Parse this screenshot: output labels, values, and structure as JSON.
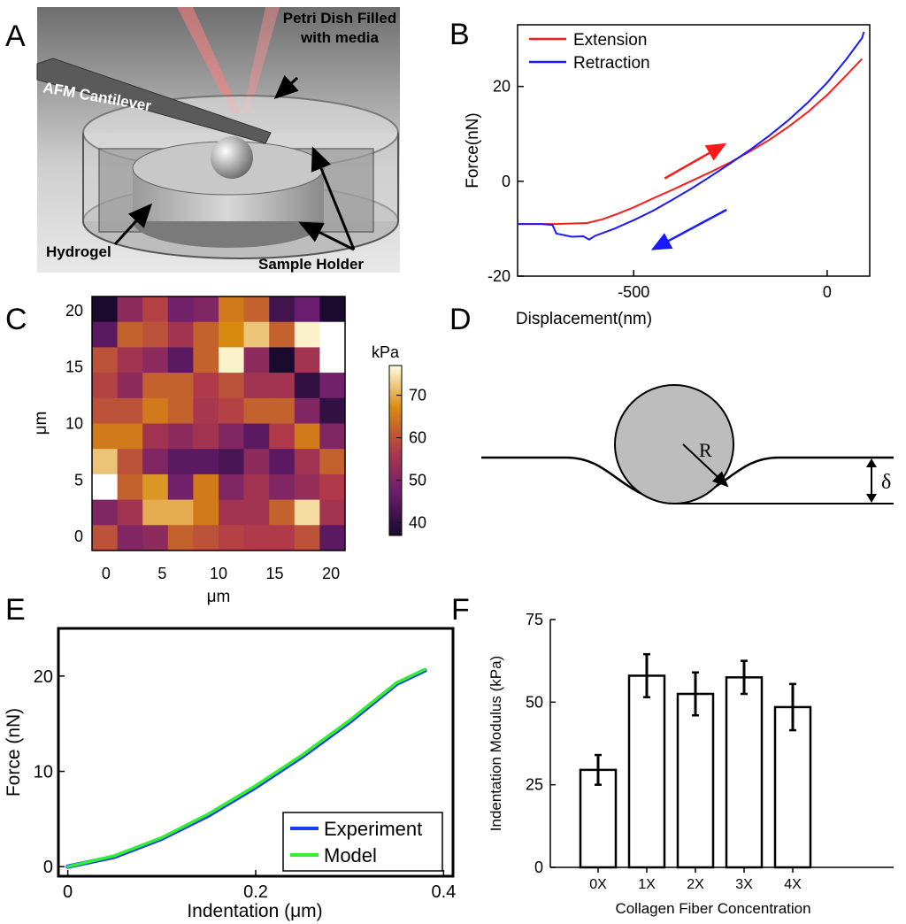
{
  "panel_labels": [
    "A",
    "B",
    "C",
    "D",
    "E",
    "F"
  ],
  "colors": {
    "extension": "#ff1a1a",
    "retraction": "#1a1aff",
    "experiment": "#1a3cff",
    "model": "#33ee33",
    "bar_fill": "#ffffff",
    "laser": "#ff8080"
  },
  "panel_a": {
    "labels": {
      "petri_dish": "Petri Dish Filled with media",
      "cantilever": "AFM Cantilever",
      "hydrogel": "Hydrogel",
      "sample_holder": "Sample Holder"
    }
  },
  "panel_d": {
    "radius_label": "R",
    "depth_label": "δ"
  },
  "chart_data": [
    {
      "panel": "B",
      "type": "line",
      "xlabel": "Displacement(nm)",
      "ylabel": "Force(nN)",
      "xlim": [
        -800,
        110
      ],
      "ylim": [
        -20,
        33
      ],
      "xticks": [
        -500,
        0
      ],
      "yticks": [
        -20,
        0,
        20
      ],
      "legend": [
        "Extension",
        "Retraction"
      ],
      "legend_position": "top-left",
      "series": [
        {
          "name": "Extension",
          "color": "#ff1a1a",
          "x": [
            -800,
            -700,
            -620,
            -580,
            -540,
            -500,
            -450,
            -400,
            -350,
            -300,
            -250,
            -200,
            -150,
            -100,
            -50,
            0,
            50,
            90
          ],
          "y": [
            -9,
            -9,
            -8.8,
            -8,
            -6.8,
            -5.5,
            -3.6,
            -1.8,
            0.1,
            2,
            4,
            6.3,
            8.7,
            11.5,
            14.6,
            18.2,
            22.4,
            25.8
          ]
        },
        {
          "name": "Retraction",
          "color": "#1a1aff",
          "x": [
            95,
            90,
            50,
            0,
            -50,
            -100,
            -150,
            -200,
            -250,
            -300,
            -350,
            -400,
            -450,
            -500,
            -550,
            -600,
            -615,
            -630,
            -660,
            -700,
            -710,
            -740,
            -800
          ],
          "y": [
            31.5,
            30.2,
            25.8,
            20.8,
            16.6,
            12.9,
            9.6,
            6.6,
            3.8,
            1.1,
            -1.5,
            -3.9,
            -6.2,
            -8.2,
            -10,
            -11.5,
            -12.3,
            -11.6,
            -11.7,
            -11,
            -9.2,
            -9,
            -9
          ]
        }
      ],
      "annotations": [
        {
          "type": "arrow",
          "color": "#ff1a1a",
          "from": [
            -420,
            0.6
          ],
          "to": [
            -265,
            7.8
          ]
        },
        {
          "type": "arrow",
          "color": "#1a1aff",
          "from": [
            -260,
            -6
          ],
          "to": [
            -450,
            -14.3
          ]
        }
      ]
    },
    {
      "panel": "C",
      "type": "heatmap",
      "xlabel": "μm",
      "ylabel": "μm",
      "xticks": [
        0,
        5,
        10,
        15,
        20
      ],
      "yticks": [
        0,
        5,
        10,
        15,
        20
      ],
      "xlim": [
        -1.25,
        21.25
      ],
      "ylim": [
        -1.25,
        21.25
      ],
      "colorbar_label": "kPa",
      "colorbar_ticks": [
        40,
        50,
        60,
        70
      ],
      "clim": [
        37,
        77
      ],
      "colormap": "hot-purple",
      "rows_top_to_bottom": [
        [
          37,
          52,
          58,
          48,
          50,
          65,
          62,
          42,
          47,
          37
        ],
        [
          45,
          62,
          60,
          55,
          62,
          67,
          72,
          62,
          76,
          77
        ],
        [
          60,
          55,
          52,
          45,
          62,
          76,
          52,
          37,
          55,
          77
        ],
        [
          58,
          52,
          62,
          62,
          57,
          60,
          55,
          55,
          40,
          48
        ],
        [
          60,
          60,
          65,
          62,
          56,
          58,
          62,
          62,
          50,
          40
        ],
        [
          65,
          65,
          55,
          52,
          55,
          50,
          45,
          57,
          65,
          50
        ],
        [
          72,
          60,
          50,
          45,
          45,
          43,
          52,
          45,
          55,
          62
        ],
        [
          77,
          62,
          68,
          48,
          65,
          50,
          55,
          50,
          53,
          57
        ],
        [
          50,
          55,
          70,
          70,
          65,
          55,
          55,
          62,
          74,
          55
        ],
        [
          60,
          50,
          52,
          62,
          60,
          58,
          57,
          57,
          60,
          45
        ]
      ]
    },
    {
      "panel": "E",
      "type": "line",
      "xlabel": "Indentation (μm)",
      "ylabel": "Force (nN)",
      "xlim": [
        -0.01,
        0.41
      ],
      "ylim": [
        -1,
        25
      ],
      "xticks": [
        0,
        0.2,
        0.4
      ],
      "yticks": [
        0,
        10,
        20
      ],
      "legend": [
        "Experiment",
        "Model"
      ],
      "legend_position": "bottom-right",
      "series": [
        {
          "name": "Experiment",
          "color": "#1a3cff",
          "x": [
            0,
            0.05,
            0.1,
            0.15,
            0.2,
            0.25,
            0.3,
            0.35,
            0.38
          ],
          "y": [
            0,
            1.05,
            2.95,
            5.4,
            8.35,
            11.6,
            15.2,
            19.2,
            20.6
          ]
        },
        {
          "name": "Model",
          "color": "#33ee33",
          "x": [
            0,
            0.05,
            0.1,
            0.15,
            0.2,
            0.25,
            0.3,
            0.35,
            0.38
          ],
          "y": [
            0,
            1.15,
            3.05,
            5.55,
            8.5,
            11.75,
            15.35,
            19.3,
            20.7
          ]
        }
      ]
    },
    {
      "panel": "F",
      "type": "bar",
      "xlabel": "Collagen Fiber Concentration",
      "ylabel": "Indentation Modulus (kPa)",
      "categories": [
        "0X",
        "1X",
        "2X",
        "3X",
        "4X"
      ],
      "values": [
        29.5,
        58,
        52.5,
        57.5,
        48.5
      ],
      "errors": [
        4.5,
        6.5,
        6.5,
        5,
        7
      ],
      "ylim": [
        0,
        75
      ],
      "yticks": [
        0,
        25,
        50,
        75
      ]
    }
  ]
}
